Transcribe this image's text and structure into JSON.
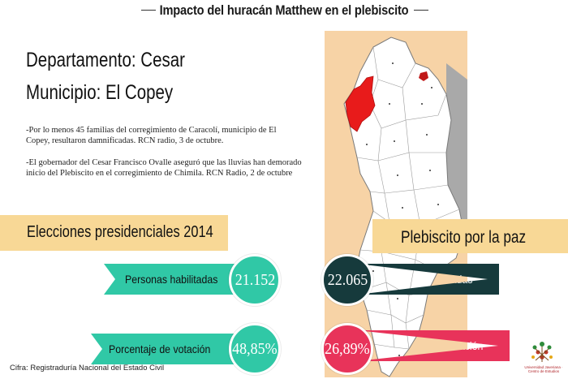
{
  "title": "Impacto del huracán Matthew en el plebiscito",
  "departamento": "Departamento: Cesar",
  "municipio": "Municipio: El Copey",
  "notes": [
    "-Por lo menos 45 familias del corregimiento de Caracolí, municipio de El Copey, resultaron damnificadas. RCN radio, 3 de octubre.",
    "-El gobernador del Cesar Francisco Ovalle aseguró que las lluvias han demorado inicio del Plebiscito en el corregimiento de Chimila. RCN Radio, 2 de octubre"
  ],
  "elecciones": {
    "heading": "Elecciones presidenciales 2014",
    "habilitadas_label": "Personas habilitadas",
    "habilitadas_value": "21.152",
    "votacion_label": "Porcentaje de votación",
    "votacion_value": "48,85%"
  },
  "plebiscito": {
    "heading": "Plebiscito por la paz",
    "habilitadas_label": "Personas habilitadas",
    "habilitadas_value": "22.065",
    "votacion_label": "Porcentaje de votación",
    "votacion_value": "26,89%"
  },
  "source": "Cifra: Registraduría Nacional del Estado Civil",
  "logo_text": "Universidad Javeriana · Centro de Estudios",
  "colors": {
    "teal": "#30c8a6",
    "dark_teal": "#163a3c",
    "pink": "#e8335a",
    "band": "#f8d896",
    "map_bg": "#f7d3a6",
    "highlight_red": "#e81b1b"
  },
  "map": {
    "highlighted": "El Copey"
  }
}
